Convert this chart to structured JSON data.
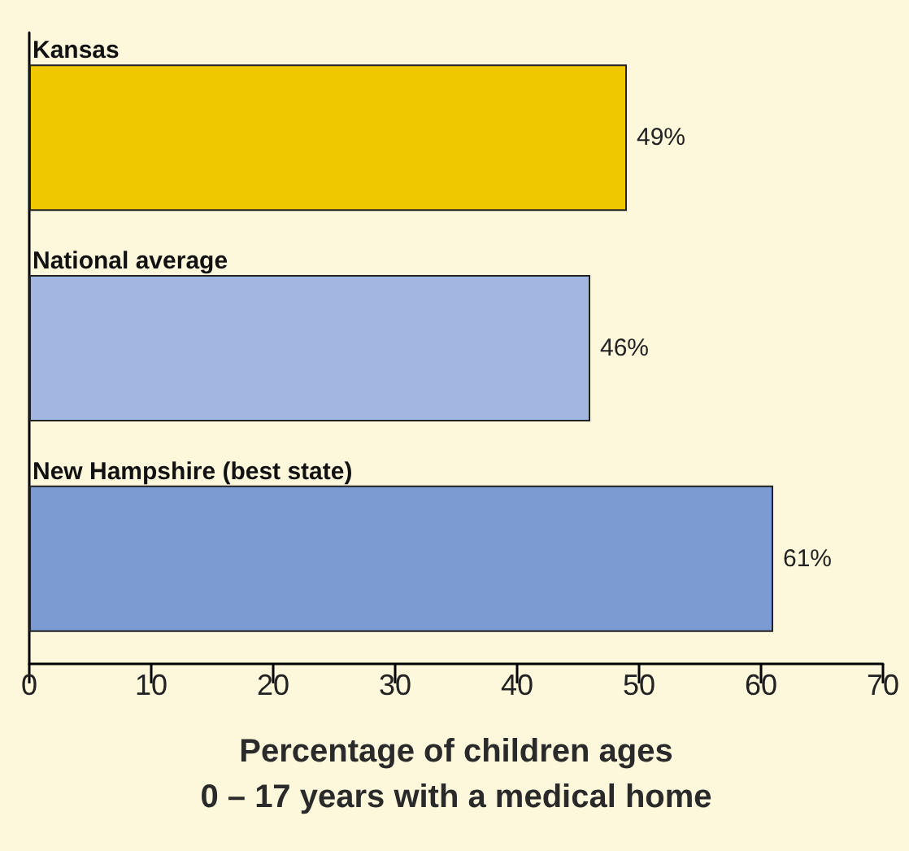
{
  "chart_data": {
    "type": "bar",
    "orientation": "horizontal",
    "categories": [
      "Kansas",
      "National average",
      "New Hampshire (best state)"
    ],
    "values": [
      49,
      46,
      61
    ],
    "colors": [
      "#efc800",
      "#a3b6e2",
      "#7b9bd2"
    ],
    "value_labels": [
      "49%",
      "46%",
      "61%"
    ],
    "xlim": [
      0,
      70
    ],
    "xticks": [
      0,
      10,
      20,
      30,
      40,
      50,
      60,
      70
    ],
    "xlabel": "Percentage of children ages\n0 – 17 years with a medical home",
    "grid": false
  }
}
